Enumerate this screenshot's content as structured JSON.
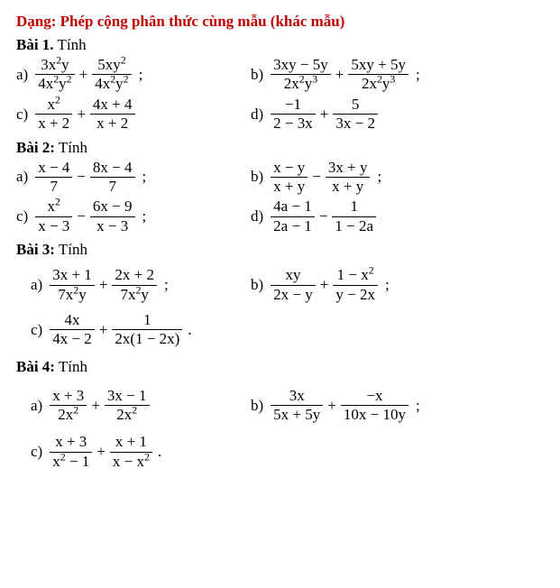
{
  "title": "Dạng: Phép cộng phân thức cùng mẫu (khác mẫu)",
  "bai1": {
    "heading_b": "Bài 1.",
    "heading_r": " Tính",
    "a": {
      "l": "a)",
      "n1": "3x²y",
      "d1": "4x²y²",
      "op": "+",
      "n2": "5xy²",
      "d2": "4x²y²",
      "end": ";"
    },
    "b": {
      "l": "b)",
      "n1": "3xy − 5y",
      "d1": "2x²y³",
      "op": "+",
      "n2": "5xy + 5y",
      "d2": "2x²y³",
      "end": ";"
    },
    "c": {
      "l": "c)",
      "n1": "x²",
      "d1": "x + 2",
      "op": "+",
      "n2": "4x + 4",
      "d2": "x + 2",
      "end": ""
    },
    "d": {
      "l": "d)",
      "n1": "−1",
      "d1": "2 − 3x",
      "op": "+",
      "n2": "5",
      "d2": "3x − 2",
      "end": ""
    }
  },
  "bai2": {
    "heading_b": "Bài 2:",
    "heading_r": " Tính",
    "a": {
      "l": "a)",
      "n1": "x − 4",
      "d1": "7",
      "op": "−",
      "n2": "8x − 4",
      "d2": "7",
      "end": ";"
    },
    "b": {
      "l": "b)",
      "n1": "x − y",
      "d1": "x + y",
      "op": "−",
      "n2": "3x + y",
      "d2": "x + y",
      "end": ";"
    },
    "c": {
      "l": "c)",
      "n1": "x²",
      "d1": "x − 3",
      "op": "−",
      "n2": "6x − 9",
      "d2": "x − 3",
      "end": ";"
    },
    "d": {
      "l": "d)",
      "n1": "4a − 1",
      "d1": "2a − 1",
      "op": "−",
      "n2": "1",
      "d2": "1 − 2a",
      "end": ""
    }
  },
  "bai3": {
    "heading_b": "Bài 3:",
    "heading_r": " Tính",
    "a": {
      "l": "a)",
      "n1": "3x + 1",
      "d1": "7x²y",
      "op": "+",
      "n2": "2x + 2",
      "d2": "7x²y",
      "end": ";"
    },
    "b": {
      "l": "b)",
      "n1": "xy",
      "d1": "2x − y",
      "op": "+",
      "n2": "1 − x²",
      "d2": "y − 2x",
      "end": ";"
    },
    "c": {
      "l": "c)",
      "n1": "4x",
      "d1": "4x − 2",
      "op": "+",
      "n2": "1",
      "d2": "2x(1 − 2x)",
      "end": "."
    }
  },
  "bai4": {
    "heading_b": "Bài 4:",
    "heading_r": " Tính",
    "a": {
      "l": "a)",
      "n1": "x + 3",
      "d1": "2x²",
      "op": "+",
      "n2": "3x − 1",
      "d2": "2x²",
      "end": ""
    },
    "b": {
      "l": "b)",
      "n1": "3x",
      "d1": "5x + 5y",
      "op": "+",
      "n2": "−x",
      "d2": "10x − 10y",
      "end": ";"
    },
    "c": {
      "l": "c)",
      "n1": "x + 3",
      "d1": "x² − 1",
      "op": "+",
      "n2": "x + 1",
      "d2": "x − x²",
      "end": "."
    }
  }
}
